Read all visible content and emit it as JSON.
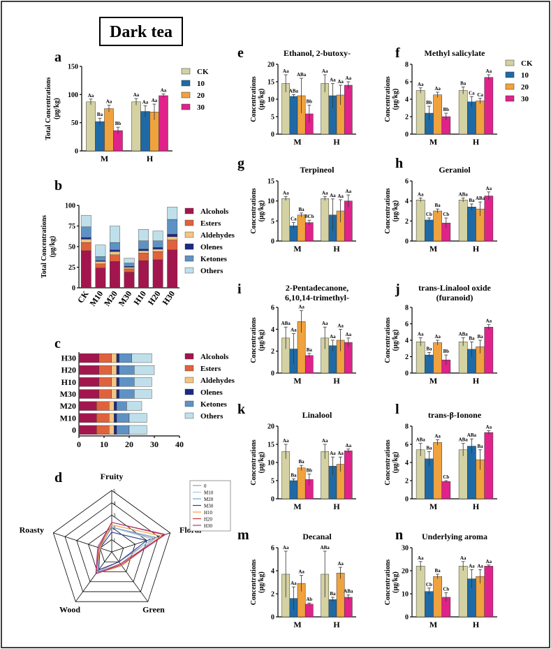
{
  "figure_title": "Dark tea",
  "colors": {
    "CK": "#d4d2a2",
    "10": "#1f6aa5",
    "20": "#f0a23f",
    "30": "#e0228a"
  },
  "group_legend": [
    "CK",
    "10",
    "20",
    "30"
  ],
  "comp_colors": [
    "#a3164d",
    "#e0623c",
    "#f3c583",
    "#1a2b85",
    "#5e92c4",
    "#bfe0ea"
  ],
  "chart_data": [
    {
      "id": "a",
      "type": "bar",
      "title": "",
      "ylabel": "Total Concentrations (μg/kg)",
      "ylim": [
        0,
        150
      ],
      "yticks": [
        0,
        50,
        100,
        150
      ],
      "categories": [
        "M",
        "H"
      ],
      "series": [
        {
          "name": "CK",
          "values": [
            87,
            87
          ],
          "err": [
            5,
            6
          ],
          "sig": [
            "Aa",
            "Aa"
          ]
        },
        {
          "name": "10",
          "values": [
            52,
            70
          ],
          "err": [
            6,
            10
          ],
          "sig": [
            "Ba",
            "Aa"
          ]
        },
        {
          "name": "20",
          "values": [
            75,
            69
          ],
          "err": [
            6,
            14
          ],
          "sig": [
            "Aa",
            "Aa"
          ]
        },
        {
          "name": "30",
          "values": [
            36,
            98
          ],
          "err": [
            6,
            3
          ],
          "sig": [
            "Bb",
            "Aa"
          ]
        }
      ]
    },
    {
      "id": "e",
      "type": "bar",
      "title": "Ethanol, 2-butoxy-",
      "ylabel": "Concentrations (μg/kg)",
      "ylim": [
        0,
        20
      ],
      "yticks": [
        0,
        5,
        10,
        15,
        20
      ],
      "categories": [
        "M",
        "H"
      ],
      "series": [
        {
          "name": "CK",
          "values": [
            14.5,
            14.5
          ],
          "err": [
            2.5,
            2.5
          ],
          "sig": [
            "Aa",
            "Aa"
          ]
        },
        {
          "name": "10",
          "values": [
            10.8,
            11
          ],
          "err": [
            0.5,
            3.5
          ],
          "sig": [
            "ABa",
            "Aa"
          ]
        },
        {
          "name": "20",
          "values": [
            11,
            11.2
          ],
          "err": [
            5,
            2.8
          ],
          "sig": [
            "ABa",
            "Aa"
          ]
        },
        {
          "name": "30",
          "values": [
            5.8,
            14
          ],
          "err": [
            2.5,
            1
          ],
          "sig": [
            "Bb",
            "Aa"
          ]
        }
      ]
    },
    {
      "id": "f",
      "type": "bar",
      "title": "Methyl salicylate",
      "ylabel": "Concentrations (μg/kg)",
      "ylim": [
        0,
        8
      ],
      "yticks": [
        0,
        2,
        4,
        6,
        8
      ],
      "categories": [
        "M",
        "H"
      ],
      "series": [
        {
          "name": "CK",
          "values": [
            5,
            5
          ],
          "err": [
            0.3,
            0.4
          ],
          "sig": [
            "Aa",
            "Ba"
          ]
        },
        {
          "name": "10",
          "values": [
            2.4,
            3.7
          ],
          "err": [
            0.8,
            0.6
          ],
          "sig": [
            "Bb",
            "Ca"
          ]
        },
        {
          "name": "20",
          "values": [
            4.5,
            3.8
          ],
          "err": [
            0.3,
            0.3
          ],
          "sig": [
            "Aa",
            "Ca"
          ]
        },
        {
          "name": "30",
          "values": [
            2,
            6.5
          ],
          "err": [
            0.4,
            0.3
          ],
          "sig": [
            "Bb",
            "Aa"
          ]
        }
      ]
    },
    {
      "id": "g",
      "type": "bar",
      "title": "Terpineol",
      "ylabel": "Concentrations (μg/kg)",
      "ylim": [
        0,
        15
      ],
      "yticks": [
        0,
        5,
        10,
        15
      ],
      "categories": [
        "M",
        "H"
      ],
      "series": [
        {
          "name": "CK",
          "values": [
            10.6,
            10.6
          ],
          "err": [
            0.5,
            0.5
          ],
          "sig": [
            "Aa",
            "Aa"
          ]
        },
        {
          "name": "10",
          "values": [
            3.8,
            6.5
          ],
          "err": [
            0.8,
            4
          ],
          "sig": [
            "Ca",
            "Aa"
          ]
        },
        {
          "name": "20",
          "values": [
            6.5,
            7.5
          ],
          "err": [
            0.5,
            2.8
          ],
          "sig": [
            "Ba",
            "Aa"
          ]
        },
        {
          "name": "30",
          "values": [
            4.6,
            10
          ],
          "err": [
            0.6,
            1.5
          ],
          "sig": [
            "BCb",
            "Aa"
          ]
        }
      ]
    },
    {
      "id": "h",
      "type": "bar",
      "title": "Geraniol",
      "ylabel": "Concentrations (μg/kg)",
      "ylim": [
        0,
        6
      ],
      "yticks": [
        0,
        2,
        4,
        6
      ],
      "categories": [
        "M",
        "H"
      ],
      "series": [
        {
          "name": "CK",
          "values": [
            4.1,
            4.1
          ],
          "err": [
            0.2,
            0.2
          ],
          "sig": [
            "Aa",
            "ABa"
          ]
        },
        {
          "name": "10",
          "values": [
            2.1,
            3.4
          ],
          "err": [
            0.2,
            0.3
          ],
          "sig": [
            "Cb",
            "Ba"
          ]
        },
        {
          "name": "20",
          "values": [
            3,
            3.2
          ],
          "err": [
            0.2,
            0.7
          ],
          "sig": [
            "Ba",
            "ABa"
          ]
        },
        {
          "name": "30",
          "values": [
            1.8,
            4.5
          ],
          "err": [
            0.5,
            0.4
          ],
          "sig": [
            "Cb",
            "Aa"
          ]
        }
      ]
    },
    {
      "id": "i",
      "type": "bar",
      "title": "2-Pentadecanone, 6,10,14-trimethyl-",
      "ylabel": "Concentrations (μg/kg)",
      "ylim": [
        0,
        6
      ],
      "yticks": [
        0,
        2,
        4,
        6
      ],
      "categories": [
        "M",
        "H"
      ],
      "series": [
        {
          "name": "CK",
          "values": [
            3.2,
            3.2
          ],
          "err": [
            1,
            1
          ],
          "sig": [
            "ABa",
            "Aa"
          ]
        },
        {
          "name": "10",
          "values": [
            2.2,
            2.5
          ],
          "err": [
            1.4,
            0.5
          ],
          "sig": [
            "Aa",
            "Aa"
          ]
        },
        {
          "name": "20",
          "values": [
            4.7,
            3
          ],
          "err": [
            1,
            1
          ],
          "sig": [
            "Aa",
            "Aa"
          ]
        },
        {
          "name": "30",
          "values": [
            1.6,
            2.8
          ],
          "err": [
            0.2,
            0.4
          ],
          "sig": [
            "Ba",
            "Aa"
          ]
        }
      ]
    },
    {
      "id": "j",
      "type": "bar",
      "title": "trans-Linalool oxide (furanoid)",
      "ylabel": "Concentrations (μg/kg)",
      "ylim": [
        0,
        8
      ],
      "yticks": [
        0,
        2,
        4,
        6,
        8
      ],
      "categories": [
        "M",
        "H"
      ],
      "series": [
        {
          "name": "CK",
          "values": [
            3.8,
            3.8
          ],
          "err": [
            0.5,
            0.5
          ],
          "sig": [
            "Aa",
            "ABa"
          ]
        },
        {
          "name": "10",
          "values": [
            2.2,
            2.9
          ],
          "err": [
            0.3,
            0.9
          ],
          "sig": [
            "Ba",
            "Ba"
          ]
        },
        {
          "name": "20",
          "values": [
            3.7,
            3.2
          ],
          "err": [
            0.3,
            0.8
          ],
          "sig": [
            "Aa",
            "Ba"
          ]
        },
        {
          "name": "30",
          "values": [
            1.6,
            5.6
          ],
          "err": [
            0.6,
            0.3
          ],
          "sig": [
            "Bb",
            "Aa"
          ]
        }
      ]
    },
    {
      "id": "k",
      "type": "bar",
      "title": "Linalool",
      "ylabel": "Concentrations (μg/kg)",
      "ylim": [
        0,
        20
      ],
      "yticks": [
        0,
        5,
        10,
        15,
        20
      ],
      "categories": [
        "M",
        "H"
      ],
      "series": [
        {
          "name": "CK",
          "values": [
            13,
            13
          ],
          "err": [
            2,
            2
          ],
          "sig": [
            "Aa",
            "Aa"
          ]
        },
        {
          "name": "10",
          "values": [
            5,
            9
          ],
          "err": [
            0.5,
            2.5
          ],
          "sig": [
            "Ba",
            "Aa"
          ]
        },
        {
          "name": "20",
          "values": [
            8.5,
            9.5
          ],
          "err": [
            0.7,
            2
          ],
          "sig": [
            "Ba",
            "Aa"
          ]
        },
        {
          "name": "30",
          "values": [
            5.3,
            13.2
          ],
          "err": [
            1.5,
            0.5
          ],
          "sig": [
            "Bb",
            "Aa"
          ]
        }
      ]
    },
    {
      "id": "l",
      "type": "bar",
      "title": "trans-β-Ionone",
      "ylabel": "Concentrations (μg/kg)",
      "ylim": [
        0,
        8
      ],
      "yticks": [
        0,
        2,
        4,
        6,
        8
      ],
      "categories": [
        "M",
        "H"
      ],
      "series": [
        {
          "name": "CK",
          "values": [
            5.4,
            5.4
          ],
          "err": [
            0.7,
            0.7
          ],
          "sig": [
            "ABa",
            "ABa"
          ]
        },
        {
          "name": "10",
          "values": [
            4.4,
            5.8
          ],
          "err": [
            0.8,
            0.8
          ],
          "sig": [
            "Ba",
            "ABa"
          ]
        },
        {
          "name": "20",
          "values": [
            6.2,
            4.3
          ],
          "err": [
            0.3,
            1.1
          ],
          "sig": [
            "Aa",
            "Ba"
          ]
        },
        {
          "name": "30",
          "values": [
            1.9,
            7.3
          ],
          "err": [
            0.1,
            0.2
          ],
          "sig": [
            "Cb",
            "Aa"
          ]
        }
      ]
    },
    {
      "id": "m",
      "type": "bar",
      "title": "Decanal",
      "ylabel": "Concentrations (μg/kg)",
      "ylim": [
        0,
        6
      ],
      "yticks": [
        0,
        2,
        4,
        6
      ],
      "categories": [
        "M",
        "H"
      ],
      "series": [
        {
          "name": "CK",
          "values": [
            3.7,
            3.7
          ],
          "err": [
            2,
            2
          ],
          "sig": [
            "Aa",
            "ABa"
          ]
        },
        {
          "name": "10",
          "values": [
            1.6,
            1.5
          ],
          "err": [
            1,
            0.2
          ],
          "sig": [
            "Aa",
            "Ba"
          ]
        },
        {
          "name": "20",
          "values": [
            2.9,
            3.8
          ],
          "err": [
            0.7,
            0.5
          ],
          "sig": [
            "Aa",
            "Aa"
          ]
        },
        {
          "name": "30",
          "values": [
            1.1,
            1.7
          ],
          "err": [
            0.1,
            0.2
          ],
          "sig": [
            "Ab",
            "ABa"
          ]
        }
      ]
    },
    {
      "id": "n",
      "type": "bar",
      "title": "Underlying aroma",
      "ylabel": "Concentrations (μg/kg)",
      "ylim": [
        0,
        30
      ],
      "yticks": [
        0,
        10,
        20,
        30
      ],
      "categories": [
        "M",
        "H"
      ],
      "series": [
        {
          "name": "CK",
          "values": [
            22,
            22
          ],
          "err": [
            2,
            2
          ],
          "sig": [
            "Aa",
            "Aa"
          ]
        },
        {
          "name": "10",
          "values": [
            11,
            16.5
          ],
          "err": [
            1.5,
            4
          ],
          "sig": [
            "Cb",
            "Aa"
          ]
        },
        {
          "name": "20",
          "values": [
            17.5,
            17.5
          ],
          "err": [
            1,
            3
          ],
          "sig": [
            "Ba",
            "Aa"
          ]
        },
        {
          "name": "30",
          "values": [
            8.5,
            22
          ],
          "err": [
            2,
            0.5
          ],
          "sig": [
            "Cb",
            "Aa"
          ]
        }
      ]
    },
    {
      "id": "b",
      "type": "stacked-bar",
      "ylabel": "Total Concentrations (μg/kg)",
      "ylim": [
        0,
        100
      ],
      "yticks": [
        0,
        25,
        50,
        75,
        100
      ],
      "categories": [
        "CK",
        "M10",
        "M20",
        "M30",
        "H10",
        "H20",
        "H30"
      ],
      "components": [
        "Alcohols",
        "Esters",
        "Aldehydes",
        "Olenes",
        "Ketones",
        "Others"
      ],
      "values": [
        [
          45,
          10,
          4,
          2,
          13,
          14
        ],
        [
          24,
          5,
          3,
          1,
          5,
          14
        ],
        [
          32,
          8,
          4,
          2,
          9,
          20
        ],
        [
          19,
          4,
          2,
          1,
          4,
          6
        ],
        [
          33,
          9,
          3,
          2,
          10,
          14
        ],
        [
          34,
          10,
          3,
          2,
          8,
          12
        ],
        [
          46,
          12,
          4,
          3,
          18,
          15
        ]
      ]
    },
    {
      "id": "c",
      "type": "stacked-hbar",
      "xlim": [
        0,
        40
      ],
      "xticks": [
        0,
        10,
        20,
        30,
        40
      ],
      "categories": [
        "H30",
        "H20",
        "H10",
        "M30",
        "M20",
        "M10",
        "0"
      ],
      "components": [
        "Alcohols",
        "Esters",
        "Aldehydes",
        "Olenes",
        "Ketones",
        "Others"
      ],
      "values": [
        [
          8,
          5,
          2,
          1,
          5,
          8
        ],
        [
          8,
          5,
          2,
          1,
          6,
          8
        ],
        [
          8,
          5,
          2,
          1,
          6,
          7
        ],
        [
          8,
          5,
          2,
          1,
          6,
          7
        ],
        [
          7,
          5,
          2,
          1,
          4,
          6
        ],
        [
          7,
          5,
          2,
          1,
          5,
          7
        ],
        [
          7,
          5,
          2,
          1,
          5,
          7
        ]
      ]
    },
    {
      "id": "d",
      "type": "radar",
      "axes": [
        "Fruity",
        "Floral",
        "Green",
        "Wood",
        "Roasty"
      ],
      "rmax": 5,
      "series": [
        {
          "name": "0",
          "color": "#9a9a9a",
          "values": [
            2,
            3.6,
            1,
            2,
            1
          ]
        },
        {
          "name": "M10",
          "color": "#a9c9e8",
          "values": [
            2,
            3.4,
            1.2,
            2,
            1
          ]
        },
        {
          "name": "M20",
          "color": "#6fa0d0",
          "values": [
            2,
            3.8,
            1.4,
            2,
            1.1
          ]
        },
        {
          "name": "M30",
          "color": "#2a3a8f",
          "values": [
            1.6,
            3,
            1,
            1.8,
            1
          ]
        },
        {
          "name": "H10",
          "color": "#f0a040",
          "values": [
            2.2,
            4.2,
            1.4,
            2.2,
            1
          ]
        },
        {
          "name": "H20",
          "color": "#d03030",
          "values": [
            2.4,
            4.5,
            1.2,
            2.2,
            1.1
          ]
        },
        {
          "name": "H30",
          "color": "#b03080",
          "values": [
            2.4,
            4.6,
            1.3,
            2.2,
            1.2
          ]
        }
      ]
    }
  ],
  "panel_letters": [
    "a",
    "b",
    "c",
    "d",
    "e",
    "f",
    "g",
    "h",
    "i",
    "j",
    "k",
    "l",
    "m",
    "n"
  ]
}
